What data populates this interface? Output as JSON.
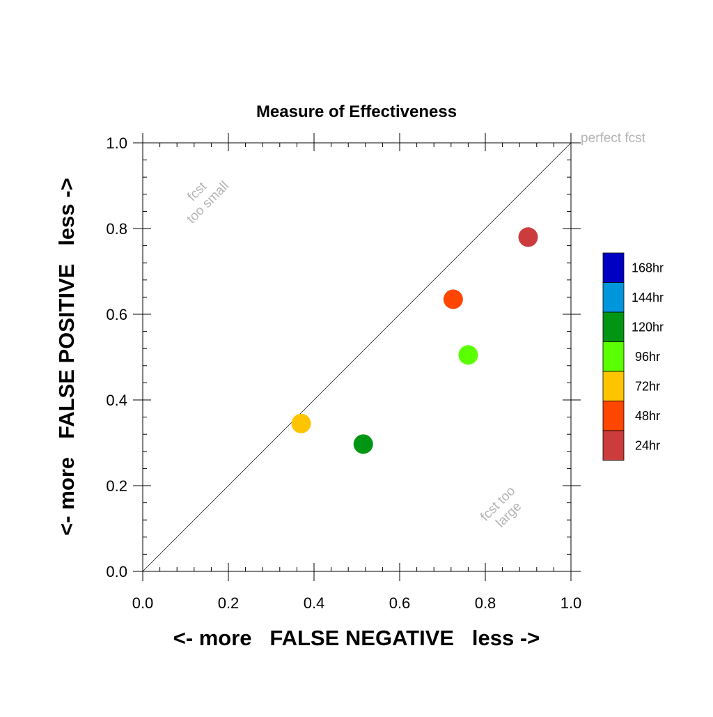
{
  "chart_data": {
    "type": "scatter",
    "title": "Measure of Effectiveness",
    "xlabel": "<- more   FALSE NEGATIVE   less ->",
    "ylabel": "<- more   FALSE POSITIVE   less ->",
    "xlim": [
      0.0,
      1.0
    ],
    "ylim": [
      0.0,
      1.0
    ],
    "xticks": [
      "0.0",
      "0.2",
      "0.4",
      "0.6",
      "0.8",
      "1.0"
    ],
    "yticks": [
      "0.0",
      "0.2",
      "0.4",
      "0.6",
      "0.8",
      "1.0"
    ],
    "grid": false,
    "diagonal_line": true,
    "annotations": {
      "perfect": "perfect fcst",
      "too_small_line1": "fcst",
      "too_small_line2": "too small",
      "too_large_line1": "fcst too",
      "too_large_line2": "large"
    },
    "legend_placement": "right",
    "legend": [
      {
        "label": "168hr",
        "color": "#0000c4"
      },
      {
        "label": "144hr",
        "color": "#0096dc"
      },
      {
        "label": "120hr",
        "color": "#009614"
      },
      {
        "label": "96hr",
        "color": "#5aff00"
      },
      {
        "label": "72hr",
        "color": "#ffc400"
      },
      {
        "label": "48hr",
        "color": "#ff4600"
      },
      {
        "label": "24hr",
        "color": "#cc3c3c"
      }
    ],
    "points": [
      {
        "label": "24hr",
        "x": 0.9,
        "y": 0.78,
        "color": "#cc3c3c"
      },
      {
        "label": "48hr",
        "x": 0.725,
        "y": 0.635,
        "color": "#ff4600"
      },
      {
        "label": "96hr",
        "x": 0.76,
        "y": 0.505,
        "color": "#5aff00"
      },
      {
        "label": "72hr",
        "x": 0.37,
        "y": 0.345,
        "color": "#ffc400"
      },
      {
        "label": "120hr",
        "x": 0.515,
        "y": 0.297,
        "color": "#009614"
      }
    ]
  }
}
